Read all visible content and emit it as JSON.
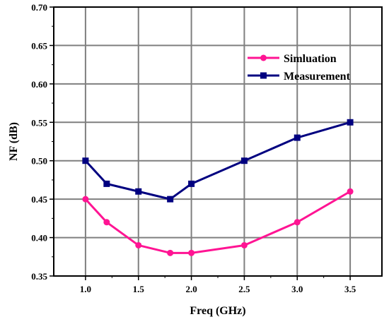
{
  "chart_data": {
    "type": "line",
    "title": "",
    "xlabel": "Freq (GHz)",
    "ylabel": "NF (dB)",
    "xlim": [
      0.7,
      3.8
    ],
    "ylim": [
      0.35,
      0.7
    ],
    "xticks": [
      "1.0",
      "1.5",
      "2.0",
      "2.5",
      "3.0",
      "3.5"
    ],
    "xtick_values": [
      1.0,
      1.5,
      2.0,
      2.5,
      3.0,
      3.5
    ],
    "yticks": [
      "0.35",
      "0.40",
      "0.45",
      "0.50",
      "0.55",
      "0.60",
      "0.65",
      "0.70"
    ],
    "ytick_values": [
      0.35,
      0.4,
      0.45,
      0.5,
      0.55,
      0.6,
      0.65,
      0.7
    ],
    "grid": true,
    "legend_position": "top-right",
    "series": [
      {
        "name": "Simluation",
        "color": "#ff1493",
        "marker": "circle",
        "x": [
          1.0,
          1.2,
          1.5,
          1.8,
          2.0,
          2.5,
          3.0,
          3.5
        ],
        "y": [
          0.45,
          0.42,
          0.39,
          0.38,
          0.38,
          0.39,
          0.42,
          0.46
        ]
      },
      {
        "name": "Measurement",
        "color": "#000080",
        "marker": "square",
        "x": [
          1.0,
          1.2,
          1.5,
          1.8,
          2.0,
          2.5,
          3.0,
          3.5
        ],
        "y": [
          0.5,
          0.47,
          0.46,
          0.45,
          0.47,
          0.5,
          0.53,
          0.55
        ]
      }
    ]
  }
}
